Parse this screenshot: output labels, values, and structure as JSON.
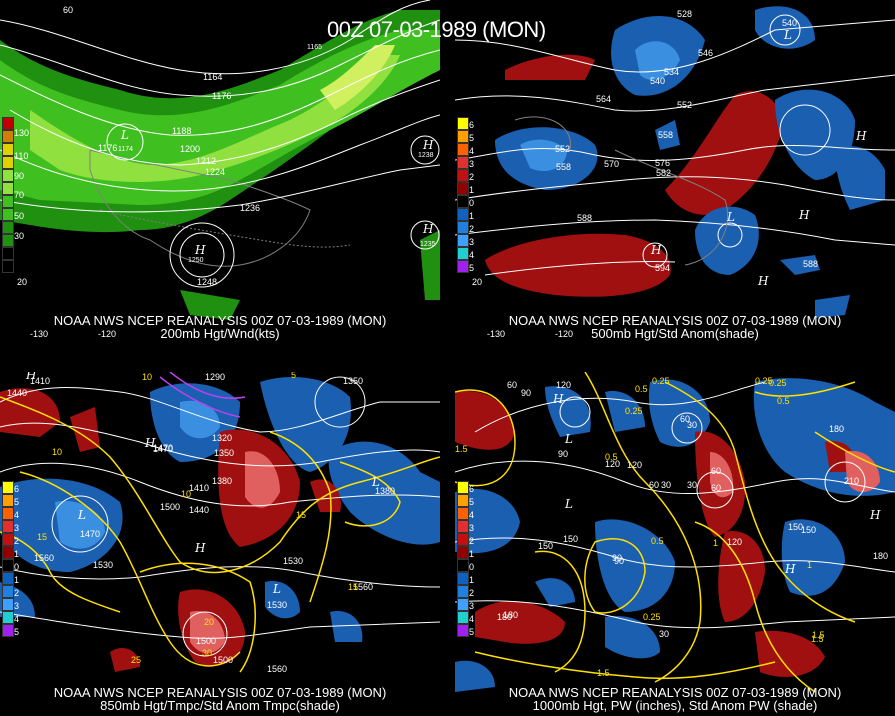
{
  "main_title": "00Z 07-03-1989 (MON)",
  "panels": [
    {
      "caption1": "NOAA NWS NCEP REANALYSIS 00Z 07-03-1989 (MON)",
      "caption2": "200mb Hgt/Wnd(kts)",
      "legend": [
        "130",
        "110",
        "90",
        "70",
        "50",
        "30"
      ],
      "legend_colors": [
        "#c00000",
        "#d08000",
        "#e0d000",
        "#90e040",
        "#40c020",
        "#209010"
      ],
      "contours": [
        "1164",
        "1176",
        "1176",
        "1188",
        "1200",
        "1212",
        "1224",
        "1236",
        "1248",
        "1250",
        "1235",
        "1238",
        "1165",
        "1174"
      ],
      "axis": [
        "60",
        "-130",
        "-120",
        "20"
      ]
    },
    {
      "caption1": "NOAA NWS NCEP REANALYSIS 00Z 07-03-1989 (MON)",
      "caption2": "500mb Hgt/Std Anom(shade)",
      "legend": [
        "6",
        "5",
        "4",
        "3",
        "2",
        "1",
        "0",
        "1",
        "2",
        "3",
        "4",
        "5"
      ],
      "legend_colors": [
        "#ffff00",
        "#ffa000",
        "#ff6000",
        "#e03030",
        "#c01010",
        "#900000",
        "#000000",
        "#1060c0",
        "#2080e0",
        "#40a0ff",
        "#20d0d0",
        "#a020f0"
      ],
      "contours": [
        "528",
        "534",
        "546",
        "540",
        "564",
        "552",
        "558",
        "552",
        "558",
        "570",
        "576",
        "582",
        "588",
        "594",
        "588",
        "540"
      ],
      "axis": [
        "60",
        "-130",
        "-120",
        "20"
      ]
    },
    {
      "caption1": "NOAA NWS NCEP REANALYSIS 00Z 07-03-1989 (MON)",
      "caption2": "850mb Hgt/Tmpc/Std Anom Tmpc(shade)",
      "legend": [
        "6",
        "5",
        "4",
        "3",
        "2",
        "1",
        "0",
        "1",
        "2",
        "3",
        "4",
        "5"
      ],
      "contours": [
        "1410",
        "1440",
        "1290",
        "1350",
        "1470",
        "1320",
        "1350",
        "1410",
        "1380",
        "1500",
        "1440",
        "1470",
        "1530",
        "1560",
        "1500",
        "1530",
        "1560",
        "1500",
        "1530",
        "1560",
        "1380",
        "1470"
      ],
      "temps": [
        "10",
        "5",
        "10",
        "15",
        "15",
        "20",
        "25",
        "30",
        "10",
        "15"
      ]
    },
    {
      "caption1": "NOAA NWS NCEP REANALYSIS 00Z 07-03-1989 (MON)",
      "caption2": "1000mb Hgt, PW (inches), Std Anom PW (shade)",
      "legend": [
        "6",
        "5",
        "4",
        "3",
        "2",
        "1",
        "0",
        "1",
        "2",
        "3",
        "4",
        "5"
      ],
      "contours": [
        "60",
        "90",
        "120",
        "60",
        "30",
        "90",
        "120",
        "150",
        "180",
        "150",
        "180",
        "120",
        "90",
        "60",
        "30",
        "180",
        "150",
        "120",
        "30",
        "60",
        "90",
        "60",
        "30",
        "210",
        "150",
        "180"
      ],
      "pw": [
        "0.25",
        "0.5",
        "0.25",
        "1.5",
        "0.5",
        "0.25",
        "1",
        "1.5",
        "0.25",
        "0.5",
        "1",
        "1.5",
        "0.5",
        "0.25",
        "1.5"
      ]
    }
  ]
}
